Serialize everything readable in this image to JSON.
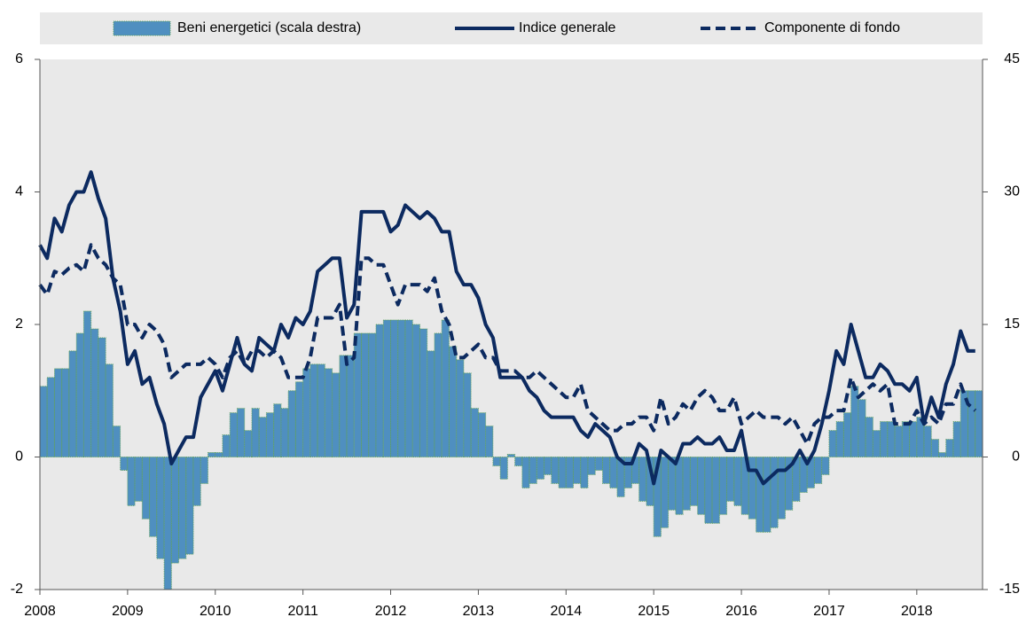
{
  "chart_data": {
    "type": "combo",
    "x": [
      2008,
      2008.083,
      2008.167,
      2008.25,
      2008.333,
      2008.417,
      2008.5,
      2008.583,
      2008.667,
      2008.75,
      2008.833,
      2008.917,
      2009,
      2009.083,
      2009.167,
      2009.25,
      2009.333,
      2009.417,
      2009.5,
      2009.583,
      2009.667,
      2009.75,
      2009.833,
      2009.917,
      2010,
      2010.083,
      2010.167,
      2010.25,
      2010.333,
      2010.417,
      2010.5,
      2010.583,
      2010.667,
      2010.75,
      2010.833,
      2010.917,
      2011,
      2011.083,
      2011.167,
      2011.25,
      2011.333,
      2011.417,
      2011.5,
      2011.583,
      2011.667,
      2011.75,
      2011.833,
      2011.917,
      2012,
      2012.083,
      2012.167,
      2012.25,
      2012.333,
      2012.417,
      2012.5,
      2012.583,
      2012.667,
      2012.75,
      2012.833,
      2012.917,
      2013,
      2013.083,
      2013.167,
      2013.25,
      2013.333,
      2013.417,
      2013.5,
      2013.583,
      2013.667,
      2013.75,
      2013.833,
      2013.917,
      2014,
      2014.083,
      2014.167,
      2014.25,
      2014.333,
      2014.417,
      2014.5,
      2014.583,
      2014.667,
      2014.75,
      2014.833,
      2014.917,
      2015,
      2015.083,
      2015.167,
      2015.25,
      2015.333,
      2015.417,
      2015.5,
      2015.583,
      2015.667,
      2015.75,
      2015.833,
      2015.917,
      2016,
      2016.083,
      2016.167,
      2016.25,
      2016.333,
      2016.417,
      2016.5,
      2016.583,
      2016.667,
      2016.75,
      2016.833,
      2016.917,
      2017,
      2017.083,
      2017.167,
      2017.25,
      2017.333,
      2017.417,
      2017.5,
      2017.583,
      2017.667,
      2017.75,
      2017.833,
      2017.917,
      2018,
      2018.083,
      2018.167,
      2018.25,
      2018.333,
      2018.417,
      2018.5,
      2018.583,
      2018.667
    ],
    "series": [
      {
        "name": "Beni energetici (scala destra)",
        "type": "bar",
        "axis": "y2",
        "color": "#4f8fc0",
        "edge": "#5fa060",
        "values": [
          8,
          9,
          10,
          10,
          12,
          14,
          16.5,
          14.5,
          13.5,
          10.5,
          3.5,
          -1.5,
          -5.5,
          -5,
          -7,
          -9,
          -11.5,
          -15,
          -12,
          -11.5,
          -11,
          -5.5,
          -3,
          0.5,
          0.5,
          2.5,
          5,
          5.5,
          3,
          5.5,
          4.5,
          5,
          6,
          5.5,
          7.5,
          8.5,
          10,
          10.5,
          10.5,
          10,
          9.5,
          11.5,
          11.5,
          14,
          14,
          14,
          15,
          15.5,
          15.5,
          15.5,
          15.5,
          15,
          14.5,
          12,
          14,
          15.5,
          12.5,
          11,
          9.5,
          5.5,
          5,
          3.5,
          -1,
          -2.5,
          0.3,
          -1,
          -3.5,
          -3,
          -2.5,
          -2,
          -3,
          -3.5,
          -3.5,
          -3,
          -3.5,
          -2,
          -1.5,
          -3,
          -3.5,
          -4.5,
          -3.5,
          -3,
          -5,
          -5.5,
          -9,
          -8,
          -6,
          -6.5,
          -6,
          -5.5,
          -6.5,
          -7.5,
          -7.5,
          -6.5,
          -5,
          -5.5,
          -6.5,
          -7,
          -8.5,
          -8.5,
          -8,
          -7,
          -6,
          -5,
          -4,
          -3.5,
          -3,
          -2,
          3,
          4,
          5,
          8,
          6.5,
          4.5,
          3,
          4,
          4,
          3.5,
          4,
          4,
          4.5,
          3.5,
          2,
          0.5,
          2,
          4,
          7.5,
          7.5,
          7.5
        ]
      },
      {
        "name": "Indice generale",
        "type": "line",
        "color": "#0c2a60",
        "dashed": false,
        "values": [
          3.2,
          3.0,
          3.6,
          3.4,
          3.8,
          4.0,
          4.0,
          4.3,
          3.9,
          3.6,
          2.7,
          2.2,
          1.4,
          1.6,
          1.1,
          1.2,
          0.8,
          0.5,
          -0.1,
          0.1,
          0.3,
          0.3,
          0.9,
          1.1,
          1.3,
          1.0,
          1.4,
          1.8,
          1.4,
          1.3,
          1.8,
          1.7,
          1.6,
          2.0,
          1.8,
          2.1,
          2.0,
          2.2,
          2.8,
          2.9,
          3.0,
          3.0,
          2.1,
          2.3,
          3.7,
          3.7,
          3.7,
          3.7,
          3.4,
          3.5,
          3.8,
          3.7,
          3.6,
          3.7,
          3.6,
          3.4,
          3.4,
          2.8,
          2.6,
          2.6,
          2.4,
          2.0,
          1.8,
          1.2,
          1.2,
          1.2,
          1.2,
          1.0,
          0.9,
          0.7,
          0.6,
          0.6,
          0.6,
          0.6,
          0.4,
          0.3,
          0.5,
          0.4,
          0.3,
          0.0,
          -0.1,
          -0.1,
          0.2,
          0.1,
          -0.4,
          0.1,
          0.0,
          -0.1,
          0.2,
          0.2,
          0.3,
          0.2,
          0.2,
          0.3,
          0.1,
          0.1,
          0.4,
          -0.2,
          -0.2,
          -0.4,
          -0.3,
          -0.2,
          -0.2,
          -0.1,
          0.1,
          -0.1,
          0.1,
          0.5,
          1.0,
          1.6,
          1.4,
          2.0,
          1.6,
          1.2,
          1.2,
          1.4,
          1.3,
          1.1,
          1.1,
          1.0,
          1.2,
          0.5,
          0.9,
          0.6,
          1.1,
          1.4,
          1.9,
          1.6,
          1.6
        ]
      },
      {
        "name": "Componente di fondo",
        "type": "line",
        "color": "#0c2a60",
        "dashed": true,
        "values": [
          2.6,
          2.45,
          2.8,
          2.75,
          2.85,
          2.9,
          2.8,
          3.2,
          3.0,
          2.9,
          2.7,
          2.6,
          2.0,
          2.0,
          1.8,
          2.0,
          1.9,
          1.7,
          1.2,
          1.3,
          1.4,
          1.4,
          1.4,
          1.5,
          1.4,
          1.2,
          1.5,
          1.6,
          1.4,
          1.6,
          1.6,
          1.5,
          1.6,
          1.5,
          1.2,
          1.2,
          1.2,
          1.5,
          2.1,
          2.1,
          2.1,
          2.3,
          1.4,
          1.5,
          3.0,
          3.0,
          2.9,
          2.9,
          2.6,
          2.3,
          2.6,
          2.6,
          2.6,
          2.5,
          2.7,
          2.2,
          2.0,
          1.5,
          1.5,
          1.6,
          1.7,
          1.5,
          1.5,
          1.3,
          1.3,
          1.3,
          1.2,
          1.2,
          1.3,
          1.2,
          1.1,
          1.0,
          0.9,
          0.9,
          1.1,
          0.7,
          0.6,
          0.5,
          0.4,
          0.4,
          0.5,
          0.5,
          0.6,
          0.6,
          0.4,
          0.9,
          0.5,
          0.6,
          0.8,
          0.7,
          0.9,
          1.0,
          0.9,
          0.7,
          0.7,
          0.9,
          0.5,
          0.6,
          0.7,
          0.6,
          0.6,
          0.6,
          0.5,
          0.6,
          0.4,
          0.2,
          0.5,
          0.6,
          0.6,
          0.7,
          0.7,
          1.2,
          0.9,
          1.0,
          1.1,
          1.0,
          1.1,
          0.5,
          0.5,
          0.5,
          0.7,
          0.5,
          0.6,
          0.5,
          0.8,
          0.8,
          1.1,
          0.8,
          0.7
        ]
      }
    ],
    "xlim": [
      2008,
      2018.75
    ],
    "xticks": [
      2008,
      2009,
      2010,
      2011,
      2012,
      2013,
      2014,
      2015,
      2016,
      2017,
      2018
    ],
    "ylim": [
      -2,
      6
    ],
    "yticks": [
      -2,
      0,
      2,
      4,
      6
    ],
    "y2lim": [
      -15,
      45
    ],
    "y2ticks": [
      -15,
      0,
      15,
      30,
      45
    ],
    "legend": "top",
    "background": "#e9e9e9"
  }
}
